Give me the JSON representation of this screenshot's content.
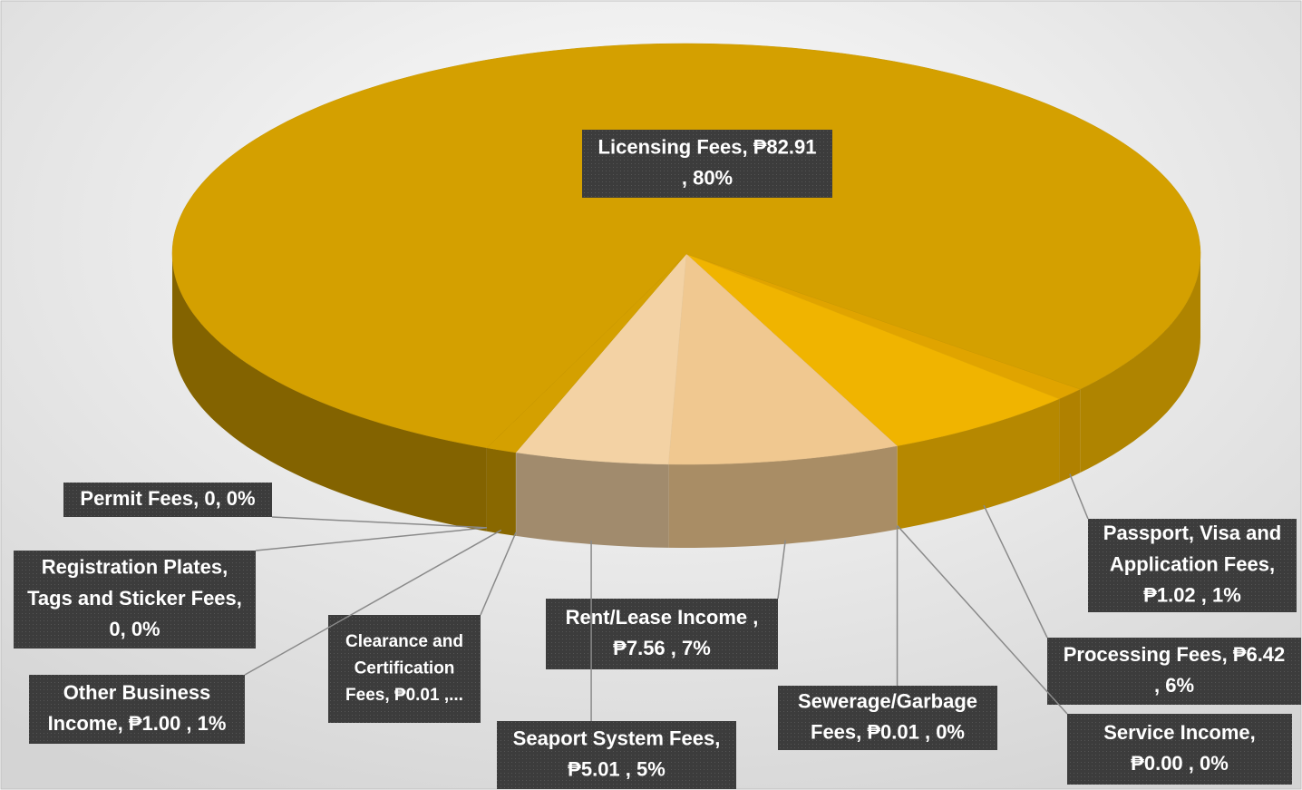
{
  "chart_data": {
    "type": "pie",
    "values": [
      1.02,
      6.42,
      0.0,
      0.01,
      7.56,
      5.01,
      0.01,
      1.0,
      0,
      0,
      82.91
    ],
    "value_labels": [
      [
        "Passport, Visa and",
        "Application Fees,",
        "₱1.02 , 1%"
      ],
      [
        "Processing Fees, ₱6.42",
        ", 6%"
      ],
      [
        "Service Income,",
        "₱0.00 , 0%"
      ],
      [
        "Sewerage/Garbage",
        "Fees, ₱0.01 , 0%"
      ],
      [
        "Rent/Lease Income ,",
        "₱7.56 , 7%"
      ],
      [
        "Seaport System Fees,",
        "₱5.01 , 5%"
      ],
      [
        "Clearance and",
        "Certification",
        "Fees, ₱0.01 ,..."
      ],
      [
        "Other Business",
        "Income, ₱1.00 , 1%"
      ],
      [
        "Registration Plates,",
        "Tags and Sticker Fees,",
        "0, 0%"
      ],
      [
        "Permit Fees, 0, 0%"
      ],
      [
        "Licensing Fees, ₱82.91",
        ", 80%"
      ]
    ],
    "colors": [
      "#e0a400",
      "#f0b400",
      "#f0b400",
      "#f0b400",
      "#f0c890",
      "#f3d2a4",
      "#f5dcb8",
      "#d4a000",
      "#d4a000",
      "#d4a000",
      "#d4a000"
    ]
  }
}
